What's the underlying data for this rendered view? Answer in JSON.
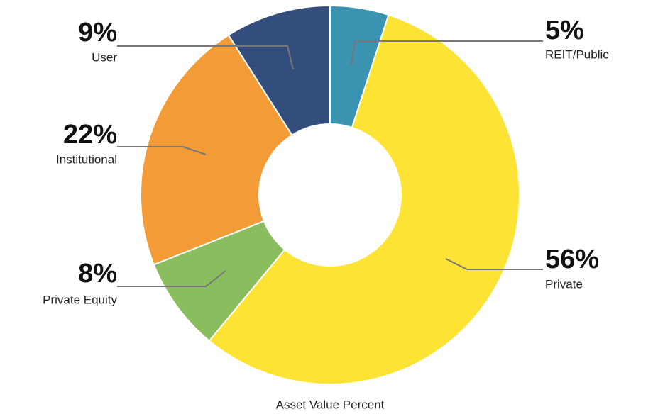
{
  "chart_data": {
    "type": "donut",
    "title": "Asset Value Percent",
    "categories": [
      "REIT/Public",
      "Private",
      "Private Equity",
      "Institutional",
      "User"
    ],
    "values": [
      5,
      56,
      8,
      22,
      9
    ],
    "value_labels": [
      "5%",
      "56%",
      "8%",
      "22%",
      "9%"
    ],
    "colors": [
      "#3a93b0",
      "#fde334",
      "#8abd5e",
      "#f39c37",
      "#334d7c"
    ]
  }
}
